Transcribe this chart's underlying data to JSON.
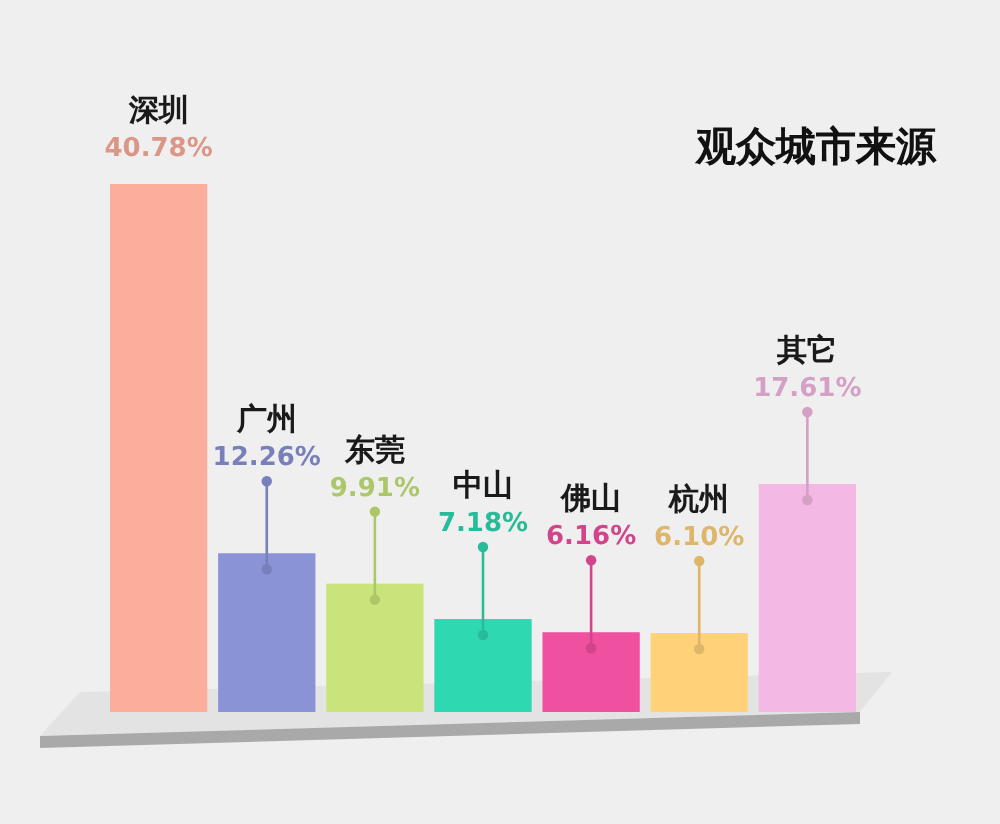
{
  "chart_data": {
    "type": "bar",
    "title": "观众城市来源",
    "categories": [
      "深圳",
      "广州",
      "东莞",
      "中山",
      "佛山",
      "杭州",
      "其它"
    ],
    "values": [
      40.78,
      12.26,
      9.91,
      7.18,
      6.16,
      6.1,
      17.61
    ],
    "colors": [
      "#fbae9c",
      "#8a93d6",
      "#c8e47a",
      "#2ed8b0",
      "#f050a0",
      "#ffd27a",
      "#f4b8e4"
    ],
    "value_labels": [
      "40.78%",
      "12.26%",
      "9.91%",
      "7.18%",
      "6.16%",
      "6.10%",
      "17.61%"
    ]
  }
}
